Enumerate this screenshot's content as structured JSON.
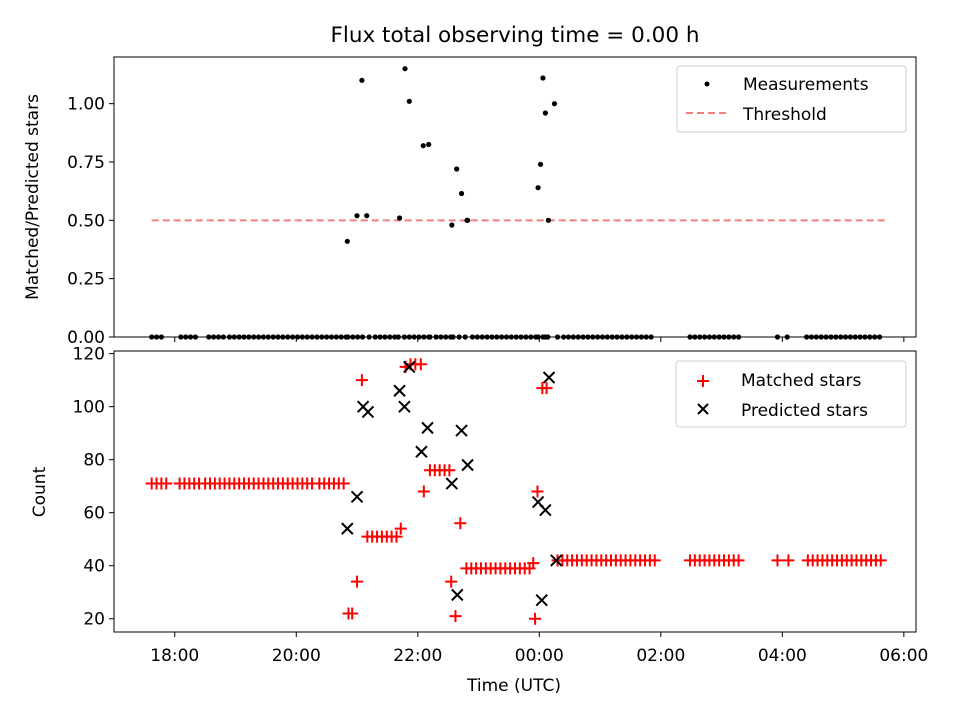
{
  "figure_title": "Flux total observing time = 0.00 h",
  "colors": {
    "measurement": "#000000",
    "threshold": "#f08080",
    "matched": "#ff0000",
    "predicted": "#000000",
    "axis": "#000000"
  },
  "chart_data": [
    {
      "type": "scatter",
      "panel": "top",
      "title": "Flux total observing time = 0.00 h",
      "xlabel": "",
      "ylabel": "Matched/Predicted stars",
      "xlim": [
        17.0,
        30.2
      ],
      "ylim": [
        0.0,
        1.2
      ],
      "yticks": [
        0.0,
        0.25,
        0.5,
        0.75,
        1.0
      ],
      "ytick_labels": [
        "0.00",
        "0.25",
        "0.50",
        "0.75",
        "1.00"
      ],
      "xticks": [
        18,
        20,
        22,
        24,
        26,
        28,
        30
      ],
      "legend": {
        "position": "top-right",
        "entries": [
          "Measurements",
          "Threshold"
        ]
      },
      "threshold": {
        "name": "Threshold",
        "y": 0.5,
        "x_range": [
          17.62,
          29.7
        ]
      },
      "series": [
        {
          "name": "Measurements",
          "marker": "dot",
          "x": [
            17.62,
            17.7,
            17.78,
            18.1,
            18.18,
            18.26,
            18.34,
            18.56,
            18.64,
            18.72,
            18.8,
            18.9,
            18.98,
            19.06,
            19.14,
            19.22,
            19.3,
            19.38,
            19.46,
            19.54,
            19.62,
            19.7,
            19.78,
            19.86,
            19.94,
            20.02,
            20.1,
            20.18,
            20.26,
            20.34,
            20.42,
            20.5,
            20.58,
            20.66,
            20.74,
            20.82,
            20.85,
            20.93,
            21.01,
            21.09,
            21.2,
            21.3,
            21.38,
            21.46,
            21.54,
            21.62,
            21.68,
            21.78,
            21.86,
            21.94,
            22.02,
            22.1,
            22.18,
            22.2,
            22.3,
            22.38,
            22.46,
            22.54,
            22.58,
            22.68,
            22.78,
            22.9,
            22.98,
            23.06,
            23.14,
            23.22,
            23.3,
            23.38,
            23.46,
            23.54,
            23.62,
            23.7,
            23.78,
            23.86,
            23.94,
            23.98,
            24.06,
            24.1,
            24.14,
            24.3,
            24.4,
            24.48,
            24.56,
            24.64,
            24.72,
            24.8,
            24.88,
            24.96,
            25.04,
            25.12,
            25.2,
            25.28,
            25.36,
            25.44,
            25.52,
            25.6,
            25.68,
            25.76,
            25.84,
            26.48,
            26.56,
            26.64,
            26.72,
            26.8,
            26.88,
            26.96,
            27.04,
            27.12,
            27.2,
            27.28,
            27.92,
            28.08,
            28.4,
            28.48,
            28.56,
            28.64,
            28.72,
            28.8,
            28.88,
            28.96,
            29.04,
            29.12,
            29.2,
            29.28,
            29.36,
            29.44,
            29.52,
            29.6,
            20.84,
            21.0,
            21.08,
            21.16,
            21.7,
            21.79,
            21.86,
            22.09,
            22.18,
            22.56,
            22.64,
            22.72,
            22.82,
            22.81,
            23.98,
            24.02,
            24.06,
            24.1,
            24.15,
            24.25
          ],
          "y": [
            0,
            0,
            0,
            0,
            0,
            0,
            0,
            0,
            0,
            0,
            0,
            0,
            0,
            0,
            0,
            0,
            0,
            0,
            0,
            0,
            0,
            0,
            0,
            0,
            0,
            0,
            0,
            0,
            0,
            0,
            0,
            0,
            0,
            0,
            0,
            0,
            0,
            0,
            0,
            0,
            0,
            0,
            0,
            0,
            0,
            0,
            0,
            0,
            0,
            0,
            0,
            0,
            0,
            0,
            0,
            0,
            0,
            0,
            0,
            0,
            0,
            0,
            0,
            0,
            0,
            0,
            0,
            0,
            0,
            0,
            0,
            0,
            0,
            0,
            0,
            0,
            0,
            0,
            0,
            0,
            0,
            0,
            0,
            0,
            0,
            0,
            0,
            0,
            0,
            0,
            0,
            0,
            0,
            0,
            0,
            0,
            0,
            0,
            0,
            0,
            0,
            0,
            0,
            0,
            0,
            0,
            0,
            0,
            0,
            0,
            0,
            0,
            0,
            0,
            0,
            0,
            0,
            0,
            0,
            0,
            0,
            0,
            0,
            0,
            0,
            0,
            0,
            0,
            0.41,
            0.52,
            1.1,
            0.52,
            0.51,
            1.15,
            1.01,
            0.82,
            0.825,
            0.48,
            0.72,
            0.615,
            0.5,
            0.5,
            0.64,
            0.74,
            1.11,
            0.96,
            0.5,
            1.0
          ]
        }
      ]
    },
    {
      "type": "scatter",
      "panel": "bottom",
      "title": "",
      "xlabel": "Time (UTC)",
      "ylabel": "Count",
      "xlim": [
        17.0,
        30.2
      ],
      "ylim": [
        15,
        121
      ],
      "yticks": [
        20,
        40,
        60,
        80,
        100,
        120
      ],
      "ytick_labels": [
        "20",
        "40",
        "60",
        "80",
        "100",
        "120"
      ],
      "xticks": [
        18,
        20,
        22,
        24,
        26,
        28,
        30
      ],
      "xtick_labels": [
        "18:00",
        "20:00",
        "22:00",
        "00:00",
        "02:00",
        "04:00",
        "06:00"
      ],
      "legend": {
        "position": "top-right",
        "entries": [
          "Matched stars",
          "Predicted stars"
        ]
      },
      "series": [
        {
          "name": "Matched stars",
          "marker": "plus",
          "x": [
            17.62,
            17.7,
            17.78,
            17.86,
            18.08,
            18.16,
            18.24,
            18.32,
            18.4,
            18.5,
            18.58,
            18.66,
            18.74,
            18.82,
            18.9,
            18.98,
            19.06,
            19.14,
            19.22,
            19.3,
            19.38,
            19.46,
            19.54,
            19.62,
            19.7,
            19.78,
            19.86,
            19.94,
            20.02,
            20.1,
            20.18,
            20.26,
            20.38,
            20.46,
            20.54,
            20.62,
            20.7,
            20.78,
            20.86,
            20.92,
            21.0,
            21.08,
            21.17,
            21.25,
            21.33,
            21.41,
            21.49,
            21.57,
            21.65,
            21.72,
            21.8,
            21.88,
            21.96,
            22.05,
            22.1,
            22.2,
            22.28,
            22.36,
            22.44,
            22.52,
            22.55,
            22.62,
            22.7,
            22.8,
            22.88,
            22.96,
            23.04,
            23.12,
            23.2,
            23.28,
            23.36,
            23.44,
            23.52,
            23.6,
            23.68,
            23.76,
            23.84,
            23.9,
            23.93,
            23.97,
            24.05,
            24.12,
            24.3,
            24.38,
            24.46,
            24.54,
            24.62,
            24.7,
            24.78,
            24.86,
            24.94,
            25.02,
            25.1,
            25.18,
            25.26,
            25.34,
            25.42,
            25.5,
            25.58,
            25.66,
            25.74,
            25.82,
            25.9,
            26.48,
            26.56,
            26.64,
            26.72,
            26.8,
            26.88,
            26.96,
            27.04,
            27.12,
            27.2,
            27.28,
            27.92,
            28.1,
            28.42,
            28.5,
            28.58,
            28.66,
            28.74,
            28.82,
            28.9,
            28.98,
            29.06,
            29.14,
            29.22,
            29.3,
            29.38,
            29.46,
            29.54,
            29.62
          ],
          "y": [
            71,
            71,
            71,
            71,
            71,
            71,
            71,
            71,
            71,
            71,
            71,
            71,
            71,
            71,
            71,
            71,
            71,
            71,
            71,
            71,
            71,
            71,
            71,
            71,
            71,
            71,
            71,
            71,
            71,
            71,
            71,
            71,
            71,
            71,
            71,
            71,
            71,
            71,
            22,
            22,
            34,
            110,
            51,
            51,
            51,
            51,
            51,
            51,
            51,
            54,
            115,
            116,
            116,
            116,
            68,
            76,
            76,
            76,
            76,
            76,
            34,
            21,
            56,
            39,
            39,
            39,
            39,
            39,
            39,
            39,
            39,
            39,
            39,
            39,
            39,
            39,
            39,
            41,
            20,
            68,
            107,
            107,
            42,
            42,
            42,
            42,
            42,
            42,
            42,
            42,
            42,
            42,
            42,
            42,
            42,
            42,
            42,
            42,
            42,
            42,
            42,
            42,
            42,
            42,
            42,
            42,
            42,
            42,
            42,
            42,
            42,
            42,
            42,
            42,
            42,
            42,
            42,
            42,
            42,
            42,
            42,
            42,
            42,
            42,
            42,
            42,
            42,
            42,
            42,
            42,
            42,
            42
          ]
        },
        {
          "name": "Predicted stars",
          "marker": "x",
          "x": [
            20.84,
            21.0,
            21.1,
            21.18,
            21.7,
            21.78,
            21.86,
            22.06,
            22.16,
            22.56,
            22.65,
            22.72,
            22.82,
            23.98,
            24.04,
            24.1,
            24.16,
            24.28
          ],
          "y": [
            54,
            66,
            100,
            98,
            106,
            100,
            115,
            83,
            92,
            71,
            29,
            91,
            78,
            64,
            27,
            61,
            111,
            42
          ]
        }
      ]
    }
  ]
}
